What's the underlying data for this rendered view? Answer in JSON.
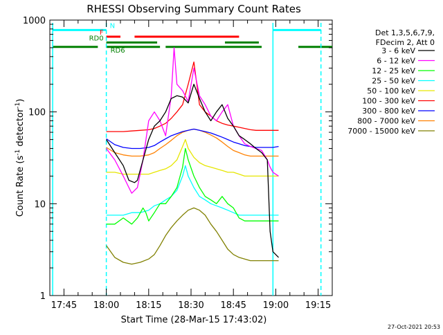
{
  "chart_data": {
    "type": "line",
    "title": "RHESSI Observing Summary Count Rates",
    "xlabel": "Start Time (28-Mar-15 17:43:02)",
    "ylabel": "Count Rate (s⁻¹ detector⁻¹)",
    "ylabel_parts": [
      "Count Rate (s",
      "-1",
      " detector",
      "-1",
      ")"
    ],
    "x_unit": "minutes after 17:43:02 UT",
    "xlim": [
      -3,
      97
    ],
    "ylim": [
      1,
      1000
    ],
    "y_scale": "log",
    "x_ticks": [
      {
        "t": 2,
        "label": "17:45"
      },
      {
        "t": 17,
        "label": "18:00"
      },
      {
        "t": 32,
        "label": "18:15"
      },
      {
        "t": 47,
        "label": "18:30"
      },
      {
        "t": 62,
        "label": "18:45"
      },
      {
        "t": 77,
        "label": "19:00"
      },
      {
        "t": 92,
        "label": "19:15"
      }
    ],
    "y_ticks": [
      {
        "v": 1,
        "label": "1"
      },
      {
        "v": 10,
        "label": "10"
      },
      {
        "v": 100,
        "label": "100"
      },
      {
        "v": 1000,
        "label": "1000"
      }
    ],
    "timestamp": "27-Oct-2021 20:53",
    "legend": {
      "position": "right",
      "header": [
        "Det 1,3,5,6,7,9,",
        "FDecim 2, Att 0"
      ]
    },
    "series": [
      {
        "name": "3 - 6 keV",
        "color": "#000000",
        "x": [
          17,
          20,
          23,
          25,
          27,
          28,
          30,
          32,
          34,
          36,
          38,
          40,
          42,
          44,
          46,
          48,
          50,
          52,
          54,
          56,
          58,
          60,
          62,
          64,
          66,
          68,
          70,
          72,
          74,
          75,
          76,
          78
        ],
        "y": [
          50,
          36,
          26,
          18,
          17,
          18,
          30,
          50,
          70,
          80,
          100,
          140,
          150,
          145,
          125,
          200,
          140,
          100,
          80,
          100,
          120,
          85,
          70,
          55,
          50,
          45,
          40,
          36,
          30,
          5,
          3,
          2.6
        ]
      },
      {
        "name": "6 - 12 keV",
        "color": "#ff00ff",
        "x": [
          17,
          20,
          23,
          25,
          26,
          28,
          30,
          32,
          34,
          36,
          38,
          40,
          41,
          42,
          44,
          46,
          48,
          50,
          52,
          54,
          56,
          58,
          60,
          62,
          64,
          66,
          68,
          70,
          72,
          74,
          75,
          76,
          78
        ],
        "y": [
          40,
          30,
          20,
          15,
          13,
          15,
          30,
          80,
          100,
          80,
          55,
          150,
          500,
          200,
          170,
          130,
          300,
          150,
          120,
          90,
          80,
          100,
          120,
          70,
          55,
          45,
          42,
          40,
          38,
          30,
          25,
          22,
          20
        ]
      },
      {
        "name": "12 - 25 keV",
        "color": "#00ff00",
        "x": [
          17,
          20,
          23,
          26,
          28,
          30,
          31,
          32,
          34,
          36,
          38,
          40,
          42,
          44,
          45,
          46,
          48,
          50,
          52,
          54,
          56,
          58,
          60,
          62,
          64,
          66,
          68,
          70,
          72,
          74,
          76,
          78
        ],
        "y": [
          6,
          6,
          7,
          6,
          7,
          9,
          8,
          6.5,
          8,
          10,
          10,
          12,
          15,
          25,
          40,
          30,
          20,
          15,
          12,
          11,
          10,
          12,
          10,
          9,
          7,
          6.5,
          6.5,
          6.5,
          6.5,
          6.5,
          6.5,
          6.5
        ]
      },
      {
        "name": "25 - 50 keV",
        "color": "#00ffff",
        "x": [
          17,
          20,
          23,
          26,
          29,
          32,
          34,
          36,
          38,
          40,
          42,
          44,
          45,
          46,
          48,
          50,
          52,
          54,
          56,
          58,
          60,
          62,
          64,
          66,
          68,
          70,
          72,
          74,
          76,
          78
        ],
        "y": [
          7.5,
          7.5,
          7.5,
          8,
          8,
          8.5,
          9.5,
          10,
          11,
          12,
          14,
          20,
          26,
          20,
          15,
          12,
          11,
          10,
          9.5,
          9,
          8.5,
          8,
          7.5,
          7.5,
          7.5,
          7.5,
          7.5,
          7.5,
          7.5,
          7.5
        ]
      },
      {
        "name": "50 - 100 keV",
        "color": "#e6e600",
        "x": [
          17,
          20,
          23,
          26,
          29,
          32,
          34,
          36,
          38,
          40,
          42,
          44,
          45,
          46,
          48,
          50,
          52,
          54,
          56,
          58,
          60,
          62,
          64,
          66,
          68,
          70,
          72,
          74,
          76,
          78
        ],
        "y": [
          22,
          22,
          21,
          21,
          21,
          21,
          22,
          23,
          24,
          26,
          30,
          42,
          50,
          40,
          32,
          28,
          26,
          25,
          24,
          23,
          22,
          22,
          21,
          20,
          20,
          20,
          20,
          20,
          20,
          20
        ]
      },
      {
        "name": "100 - 300 keV",
        "color": "#ff0000",
        "x": [
          17,
          20,
          23,
          26,
          29,
          32,
          34,
          36,
          38,
          40,
          42,
          44,
          46,
          48,
          50,
          52,
          54,
          56,
          58,
          60,
          62,
          64,
          66,
          68,
          70,
          72,
          74,
          76,
          78
        ],
        "y": [
          61,
          61,
          61,
          62,
          63,
          64,
          66,
          70,
          75,
          85,
          100,
          120,
          200,
          350,
          120,
          100,
          90,
          80,
          75,
          72,
          70,
          68,
          66,
          64,
          63,
          63,
          63,
          63,
          63
        ]
      },
      {
        "name": "300 - 800 keV",
        "color": "#0000ff",
        "x": [
          17,
          20,
          23,
          26,
          29,
          32,
          34,
          36,
          38,
          40,
          42,
          44,
          46,
          48,
          50,
          52,
          54,
          56,
          58,
          60,
          62,
          64,
          66,
          68,
          70,
          72,
          74,
          76,
          78
        ],
        "y": [
          51,
          44,
          41,
          40,
          40,
          41,
          43,
          47,
          51,
          55,
          58,
          61,
          63,
          65,
          63,
          61,
          59,
          56,
          53,
          50,
          47,
          45,
          43,
          42,
          41,
          41,
          41,
          41,
          42
        ]
      },
      {
        "name": "800 - 7000 keV",
        "color": "#ff8000",
        "x": [
          17,
          20,
          23,
          26,
          29,
          32,
          34,
          36,
          38,
          40,
          42,
          44,
          46,
          48,
          50,
          52,
          54,
          56,
          58,
          60,
          62,
          64,
          66,
          68,
          70,
          72,
          74,
          76,
          78
        ],
        "y": [
          41,
          36,
          34,
          33,
          33,
          34,
          36,
          40,
          44,
          49,
          55,
          60,
          63,
          65,
          63,
          60,
          56,
          52,
          47,
          42,
          38,
          36,
          34,
          33,
          33,
          33,
          33,
          33,
          33
        ]
      },
      {
        "name": "7000 - 15000 keV",
        "color": "#808000",
        "x": [
          17,
          20,
          23,
          26,
          29,
          32,
          34,
          36,
          38,
          40,
          42,
          44,
          46,
          48,
          50,
          52,
          54,
          56,
          58,
          60,
          62,
          64,
          66,
          68,
          70,
          72,
          74,
          76,
          78
        ],
        "y": [
          3.5,
          2.6,
          2.3,
          2.2,
          2.3,
          2.5,
          2.8,
          3.5,
          4.5,
          5.5,
          6.5,
          7.5,
          8.5,
          9,
          8.5,
          7.5,
          6,
          5,
          4,
          3.2,
          2.8,
          2.6,
          2.5,
          2.4,
          2.4,
          2.4,
          2.4,
          2.4,
          2.4
        ]
      }
    ],
    "flag_bars": [
      {
        "label": "N",
        "color": "#00ffff",
        "level": 780,
        "segments": [
          [
            -2,
            17
          ],
          [
            76,
            93
          ]
        ]
      },
      {
        "label": "F",
        "color": "#ff0000",
        "level": 660,
        "segments": [
          [
            17,
            22
          ],
          [
            27,
            64
          ]
        ]
      },
      {
        "label": "RD0",
        "color": "#008000",
        "level": 570,
        "segments": [
          [
            17,
            35
          ],
          [
            59,
            71
          ]
        ]
      },
      {
        "label": "RD6",
        "color": "#008000",
        "level": 510,
        "segments": [
          [
            -2,
            14
          ],
          [
            17,
            36
          ],
          [
            38,
            72
          ],
          [
            85,
            97
          ]
        ]
      }
    ],
    "vertical_markers": [
      {
        "t": -2,
        "color": "#00ffff",
        "style": "solid"
      },
      {
        "t": 17,
        "color": "#00ffff",
        "style": "dashed"
      },
      {
        "t": 76,
        "color": "#00ffff",
        "style": "solid"
      },
      {
        "t": 93,
        "color": "#00ffff",
        "style": "dashed"
      }
    ]
  }
}
